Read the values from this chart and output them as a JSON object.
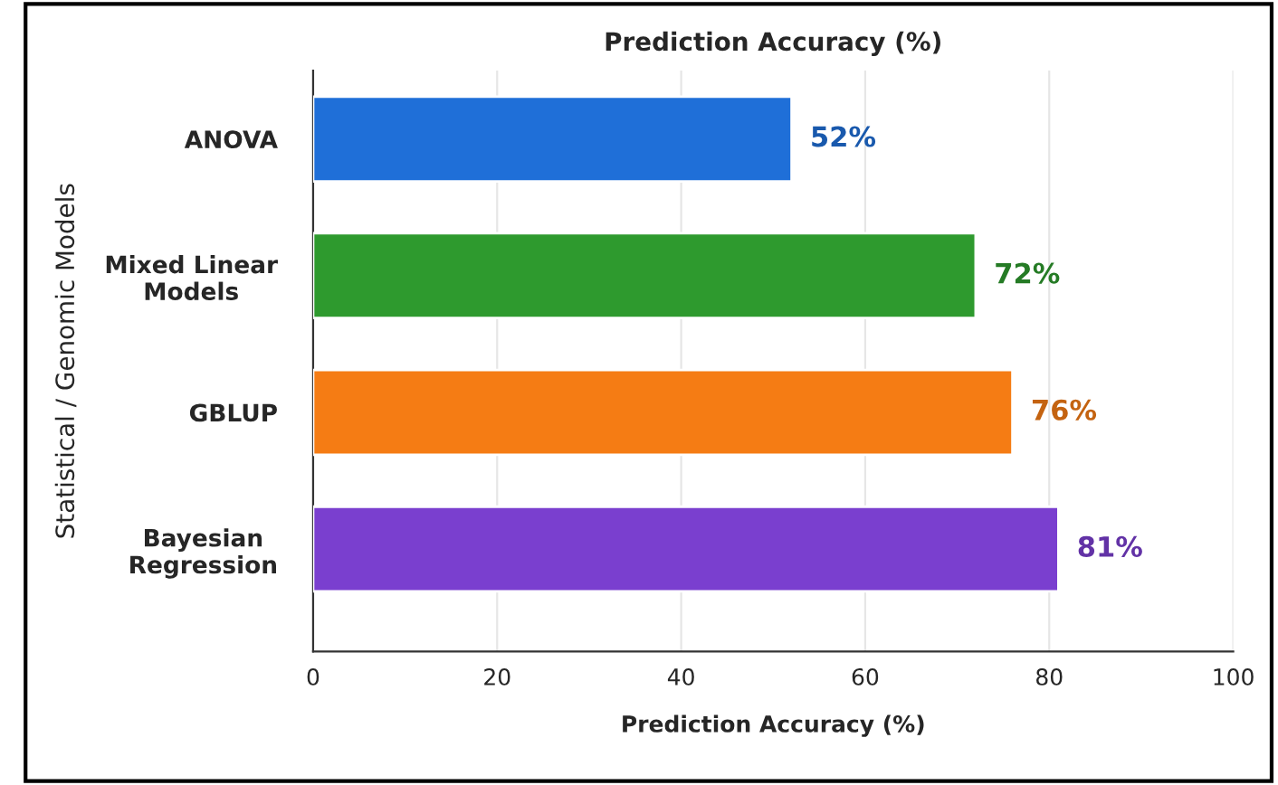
{
  "chart_data": {
    "type": "bar",
    "orientation": "horizontal",
    "title": "Prediction Accuracy (%)",
    "xlabel": "Prediction Accuracy (%)",
    "ylabel": "Statistical / Genomic Models",
    "categories": [
      "ANOVA",
      "Mixed Linear\nModels",
      "GBLUP",
      "Bayesian\nRegression"
    ],
    "values": [
      52,
      72,
      76,
      81
    ],
    "value_labels": [
      "52%",
      "72%",
      "76%",
      "81%"
    ],
    "colors": [
      "#1f6fd8",
      "#2e9a2e",
      "#f57c14",
      "#7a3fcf"
    ],
    "xlim": [
      0,
      100
    ],
    "xticks": [
      0,
      20,
      40,
      60,
      80,
      100
    ],
    "grid": "x"
  }
}
